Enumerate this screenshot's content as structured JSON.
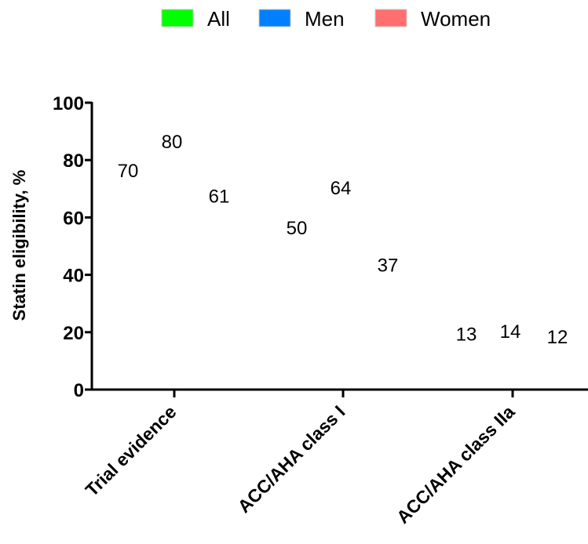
{
  "chart_data": {
    "type": "bar",
    "ylabel": "Statin eligibility, %",
    "xlabel": "",
    "ylim": [
      0,
      100
    ],
    "yticks": [
      0,
      20,
      40,
      60,
      80,
      100
    ],
    "grid": false,
    "legend_position": "top-center",
    "categories": [
      "Trial evidence",
      "ACC/AHA class I",
      "ACC/AHA class IIa"
    ],
    "series": [
      {
        "name": "All",
        "color": "#00ff00",
        "values": [
          70,
          50,
          13
        ]
      },
      {
        "name": "Men",
        "color": "#0080ff",
        "values": [
          80,
          64,
          14
        ]
      },
      {
        "name": "Women",
        "color": "#ff6f6f",
        "values": [
          61,
          37,
          12
        ]
      }
    ]
  }
}
